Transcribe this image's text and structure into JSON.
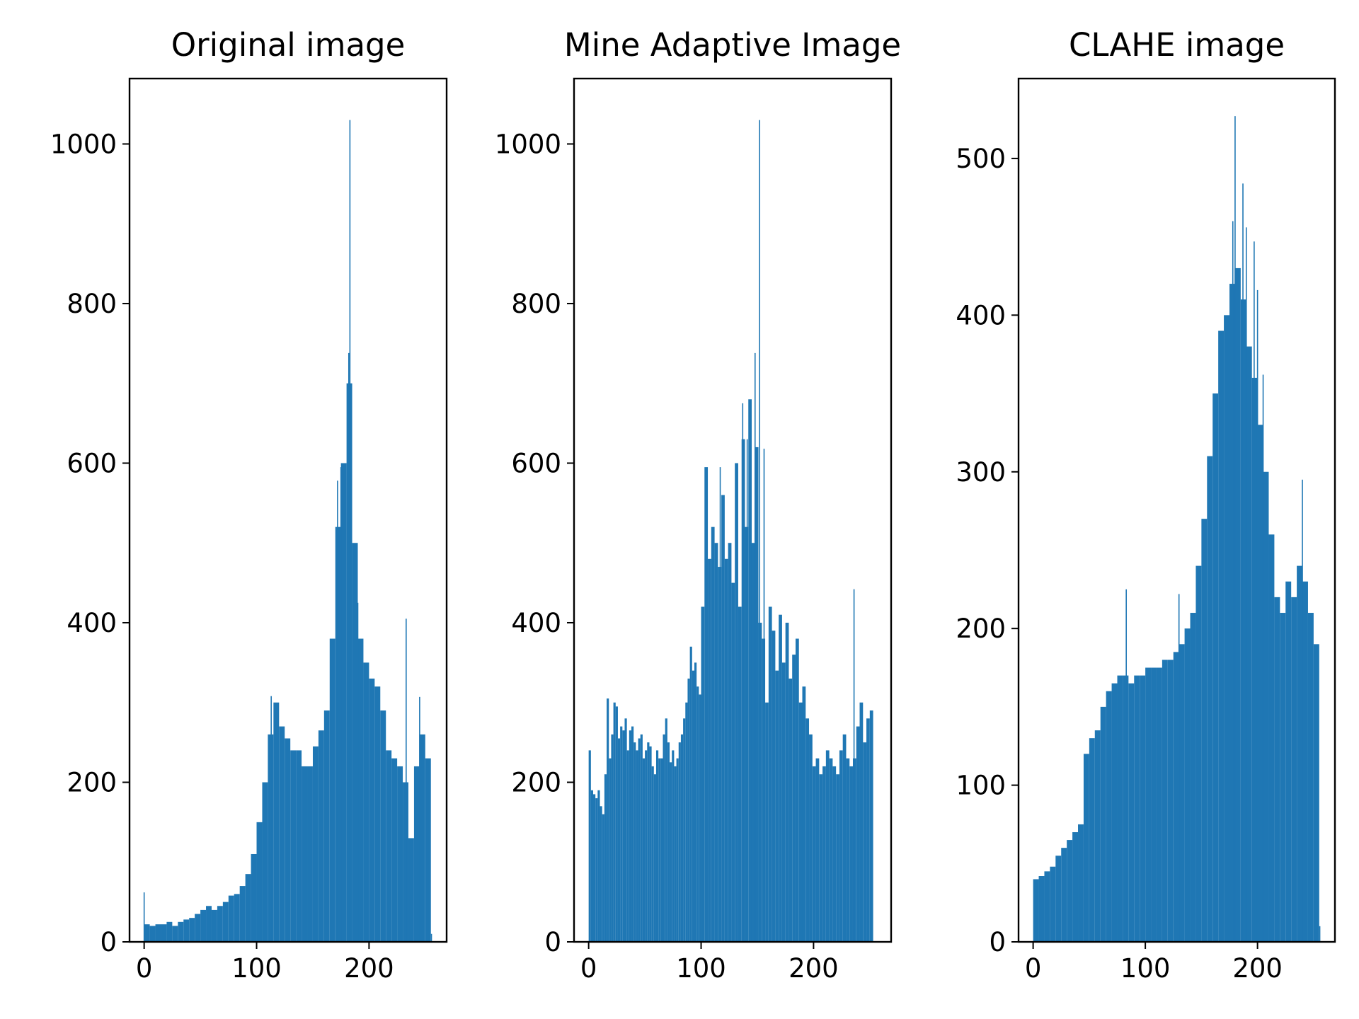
{
  "figure": {
    "background": "#ffffff",
    "bar_color": "#1f77b4"
  },
  "chart_data": [
    {
      "type": "bar",
      "title": "Original image",
      "xlabel": "",
      "ylabel": "",
      "xlim": [
        -13,
        269
      ],
      "ylim": [
        0,
        1082
      ],
      "xticks": [
        0,
        100,
        200
      ],
      "yticks": [
        0,
        200,
        400,
        600,
        800,
        1000
      ],
      "grid": false,
      "legend": "none",
      "x": [
        0,
        5,
        10,
        15,
        20,
        25,
        30,
        35,
        40,
        45,
        50,
        55,
        60,
        65,
        70,
        75,
        80,
        85,
        90,
        95,
        100,
        105,
        110,
        115,
        120,
        125,
        130,
        135,
        140,
        145,
        150,
        155,
        160,
        165,
        170,
        175,
        180,
        185,
        190,
        195,
        200,
        205,
        210,
        215,
        220,
        225,
        230,
        235,
        240,
        245,
        250,
        255
      ],
      "values": [
        22,
        20,
        22,
        22,
        25,
        20,
        25,
        28,
        30,
        35,
        40,
        45,
        40,
        45,
        50,
        58,
        60,
        70,
        85,
        110,
        150,
        200,
        260,
        300,
        270,
        255,
        240,
        240,
        220,
        220,
        245,
        265,
        290,
        380,
        520,
        600,
        700,
        500,
        380,
        350,
        330,
        320,
        290,
        240,
        230,
        220,
        200,
        130,
        220,
        260,
        230,
        10
      ],
      "spikes": [
        {
          "x": 0,
          "value": 62
        },
        {
          "x": 113,
          "value": 308
        },
        {
          "x": 172,
          "value": 578
        },
        {
          "x": 175,
          "value": 595
        },
        {
          "x": 182,
          "value": 738
        },
        {
          "x": 183,
          "value": 1030
        },
        {
          "x": 190,
          "value": 425
        },
        {
          "x": 233,
          "value": 405
        },
        {
          "x": 245,
          "value": 307
        }
      ]
    },
    {
      "type": "bar",
      "title": "Mine Adaptive Image",
      "xlabel": "",
      "ylabel": "",
      "xlim": [
        -13,
        269
      ],
      "ylim": [
        0,
        1082
      ],
      "xticks": [
        0,
        100,
        200
      ],
      "yticks": [
        0,
        200,
        400,
        600,
        800,
        1000
      ],
      "grid": false,
      "legend": "none",
      "x": [
        0,
        2,
        4,
        6,
        8,
        10,
        12,
        14,
        16,
        18,
        20,
        22,
        24,
        26,
        28,
        30,
        32,
        34,
        36,
        38,
        40,
        42,
        44,
        46,
        48,
        50,
        52,
        54,
        56,
        58,
        60,
        62,
        64,
        66,
        68,
        70,
        72,
        74,
        76,
        78,
        80,
        82,
        84,
        86,
        88,
        90,
        92,
        94,
        96,
        98,
        100,
        103,
        106,
        109,
        112,
        115,
        118,
        121,
        124,
        127,
        130,
        133,
        136,
        139,
        142,
        145,
        148,
        151,
        154,
        157,
        160,
        163,
        166,
        169,
        172,
        175,
        178,
        181,
        184,
        187,
        190,
        193,
        196,
        199,
        202,
        205,
        208,
        211,
        214,
        217,
        220,
        223,
        226,
        229,
        232,
        235,
        238,
        241,
        244,
        247,
        250,
        253,
        255
      ],
      "values": [
        240,
        190,
        185,
        180,
        190,
        170,
        160,
        210,
        305,
        230,
        260,
        300,
        295,
        255,
        270,
        265,
        280,
        240,
        265,
        270,
        250,
        240,
        255,
        260,
        230,
        240,
        250,
        245,
        220,
        210,
        240,
        230,
        230,
        260,
        280,
        250,
        225,
        240,
        220,
        230,
        250,
        260,
        280,
        300,
        330,
        370,
        340,
        350,
        320,
        310,
        420,
        595,
        480,
        520,
        500,
        470,
        560,
        480,
        500,
        450,
        600,
        420,
        630,
        520,
        680,
        500,
        620,
        400,
        380,
        300,
        420,
        390,
        340,
        410,
        350,
        400,
        330,
        360,
        380,
        300,
        320,
        280,
        260,
        220,
        230,
        210,
        220,
        240,
        230,
        220,
        210,
        240,
        260,
        230,
        220,
        230,
        270,
        300,
        250,
        280,
        290,
        0,
        0
      ],
      "spikes": [
        {
          "x": 152,
          "value": 1030
        },
        {
          "x": 148,
          "value": 738
        },
        {
          "x": 137,
          "value": 675
        },
        {
          "x": 144,
          "value": 655
        },
        {
          "x": 141,
          "value": 630
        },
        {
          "x": 156,
          "value": 618
        },
        {
          "x": 117,
          "value": 595
        },
        {
          "x": 236,
          "value": 442
        }
      ]
    },
    {
      "type": "bar",
      "title": "CLAHE image",
      "xlabel": "",
      "ylabel": "",
      "xlim": [
        -13,
        269
      ],
      "ylim": [
        0,
        551
      ],
      "xticks": [
        0,
        100,
        200
      ],
      "yticks": [
        0,
        100,
        200,
        300,
        400,
        500
      ],
      "grid": false,
      "legend": "none",
      "x": [
        0,
        5,
        10,
        15,
        20,
        25,
        30,
        35,
        40,
        45,
        50,
        55,
        60,
        65,
        70,
        75,
        80,
        85,
        90,
        95,
        100,
        105,
        110,
        115,
        120,
        125,
        130,
        135,
        140,
        145,
        150,
        155,
        160,
        165,
        170,
        175,
        180,
        185,
        190,
        195,
        200,
        205,
        210,
        215,
        220,
        225,
        230,
        235,
        240,
        245,
        250,
        255
      ],
      "values": [
        40,
        42,
        45,
        48,
        55,
        60,
        65,
        70,
        75,
        120,
        130,
        135,
        150,
        160,
        165,
        170,
        170,
        165,
        170,
        170,
        175,
        175,
        175,
        180,
        180,
        185,
        190,
        200,
        210,
        240,
        270,
        310,
        350,
        390,
        400,
        420,
        430,
        410,
        380,
        360,
        330,
        300,
        260,
        220,
        210,
        230,
        220,
        240,
        230,
        210,
        190,
        10
      ],
      "spikes": [
        {
          "x": 180,
          "value": 527
        },
        {
          "x": 187,
          "value": 484
        },
        {
          "x": 178,
          "value": 460
        },
        {
          "x": 190,
          "value": 456
        },
        {
          "x": 197,
          "value": 447
        },
        {
          "x": 200,
          "value": 416
        },
        {
          "x": 205,
          "value": 362
        },
        {
          "x": 83,
          "value": 225
        },
        {
          "x": 130,
          "value": 222
        },
        {
          "x": 240,
          "value": 295
        }
      ]
    }
  ]
}
